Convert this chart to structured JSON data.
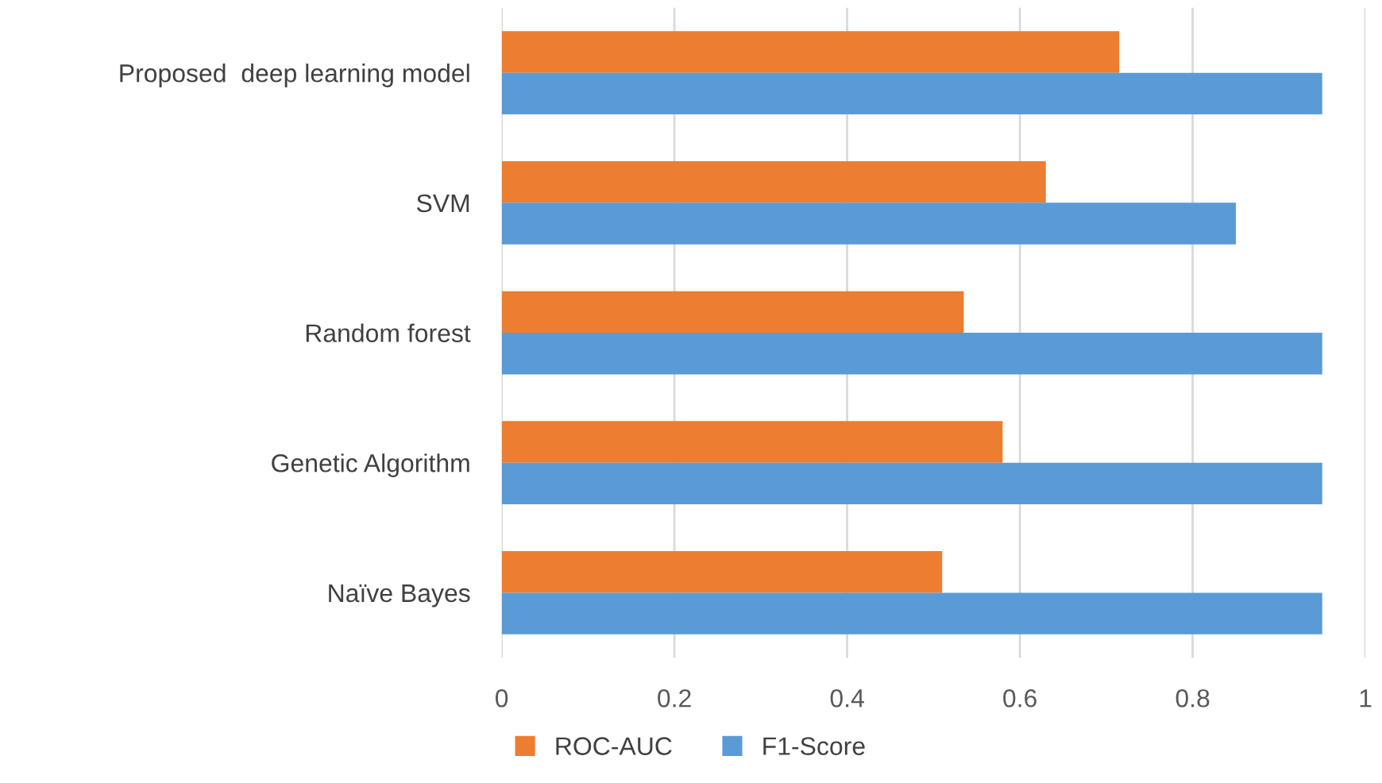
{
  "chart_data": {
    "type": "bar",
    "orientation": "horizontal",
    "categories": [
      "Proposed  deep learning model",
      "SVM",
      "Random forest",
      "Genetic Algorithm",
      "Naïve Bayes"
    ],
    "series": [
      {
        "name": "ROC-AUC",
        "color": "#ed7d31",
        "values": [
          0.715,
          0.63,
          0.535,
          0.58,
          0.51
        ]
      },
      {
        "name": "F1-Score",
        "color": "#5b9bd5",
        "values": [
          0.95,
          0.85,
          0.95,
          0.95,
          0.95
        ]
      }
    ],
    "xlim": [
      0,
      1
    ],
    "xticks": [
      0,
      0.2,
      0.4,
      0.6,
      0.8,
      1
    ],
    "grid": "x",
    "legend": "bottom"
  }
}
